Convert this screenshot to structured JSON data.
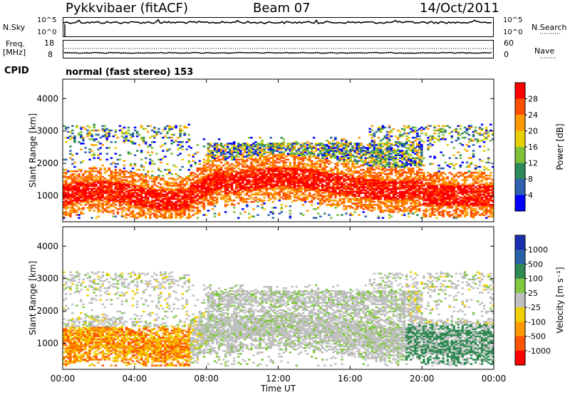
{
  "header": {
    "title": "Pykkvibaer (fitACF)",
    "beam": "Beam 07",
    "date": "14/Oct/2011"
  },
  "top_panels": {
    "nsky_label": "N.Sky",
    "nsky_ticks": [
      "10^5",
      "10^0"
    ],
    "nsearch_label": "N.Search",
    "nsearch_ticks": [
      "10^5",
      "10^0"
    ],
    "freq_label": "Freq.",
    "freq_unit": "[MHz]",
    "freq_ticks": [
      "18",
      "8"
    ],
    "nave_label": "Nave",
    "nave_ticks": [
      "60",
      "0"
    ],
    "cpid_label": "CPID",
    "cpid_text": "normal (fast stereo) 153"
  },
  "chart_data": [
    {
      "type": "heatmap",
      "name": "power",
      "ylabel": "Slant Range [km]",
      "yticks": [
        "4000",
        "3000",
        "2000",
        "1000"
      ],
      "ylim": [
        200,
        4600
      ],
      "xticks": [
        "00:00",
        "04:00",
        "08:00",
        "12:00",
        "16:00",
        "20:00",
        "00:00"
      ],
      "xlim_hours": [
        0,
        24
      ],
      "colorbar_label": "Power [dB]",
      "colorbar_ticks": [
        "28",
        "24",
        "20",
        "16",
        "12",
        "8",
        "4"
      ],
      "colorbar_colors": [
        "#ff0000",
        "#ff5000",
        "#ff9a00",
        "#e8d000",
        "#7fc23a",
        "#2f8a5a",
        "#3060b0",
        "#0000ff"
      ]
    },
    {
      "type": "heatmap",
      "name": "velocity",
      "ylabel": "Slant Range [km]",
      "yticks": [
        "4000",
        "3000",
        "2000",
        "1000"
      ],
      "ylim": [
        200,
        4600
      ],
      "xticks": [
        "00:00",
        "04:00",
        "08:00",
        "12:00",
        "16:00",
        "20:00",
        "00:00"
      ],
      "xlim_hours": [
        0,
        24
      ],
      "xlabel": "Time UT",
      "colorbar_label": "Velocity [m s⁻¹]",
      "colorbar_ticks": [
        "1000",
        "500",
        "100",
        "25",
        "-25",
        "-100",
        "-500",
        "-1000"
      ],
      "colorbar_colors": [
        "#1a2fb0",
        "#2a62a8",
        "#2e8a52",
        "#80c840",
        "#c0c0c0",
        "#f0d000",
        "#ff9a00",
        "#ff5500",
        "#ff0000"
      ]
    }
  ]
}
